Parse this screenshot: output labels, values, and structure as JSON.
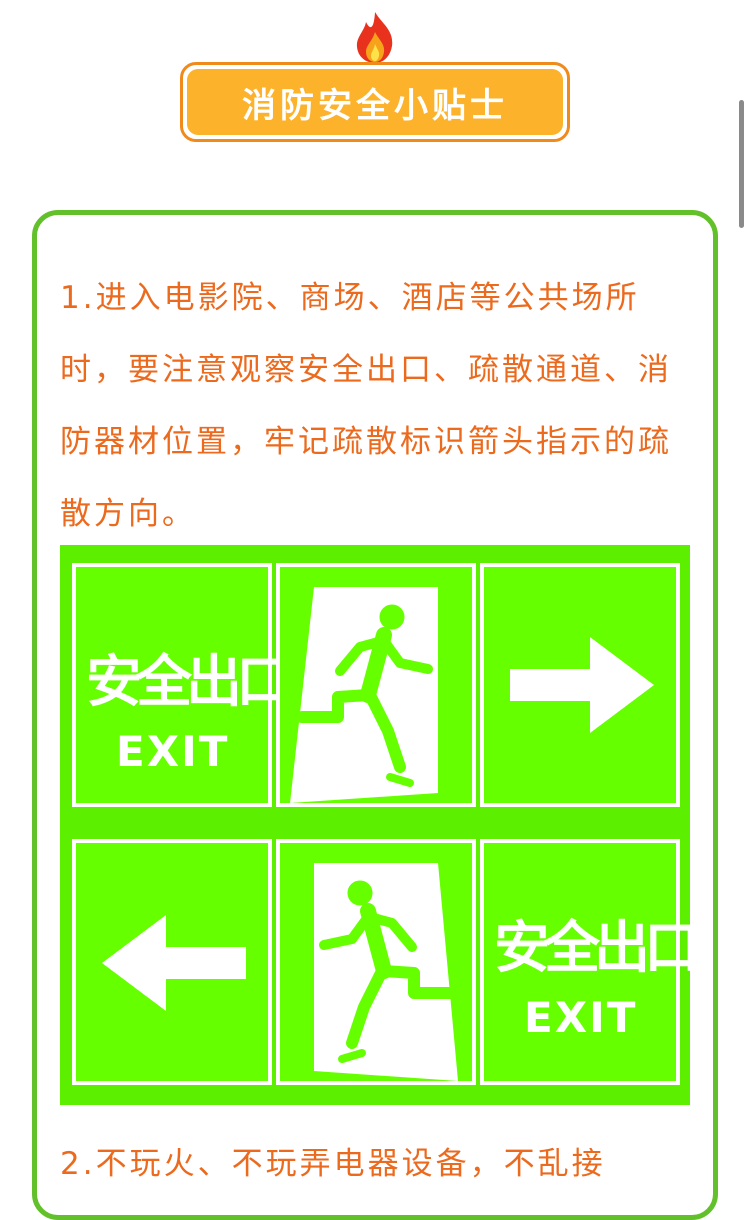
{
  "header": {
    "title": "消防安全小贴士",
    "icon": "flame-icon"
  },
  "tips": [
    {
      "text": "1.进入电影院、商场、酒店等公共场所时，要注意观察安全出口、疏散通道、消防器材位置，牢记疏散标识箭头指示的疏散方向。"
    },
    {
      "text": "2.不玩火、不玩弄电器设备，不乱接"
    }
  ],
  "sign": {
    "zh": "安全出口",
    "en": "EXIT",
    "icons": [
      "running-man-icon",
      "right-arrow-icon",
      "left-arrow-icon"
    ]
  },
  "colors": {
    "title_bg": "#fdb22b",
    "title_border": "#f08a1a",
    "text": "#ec6a1e",
    "card_border": "#62c12a",
    "sign_green": "#66ff00"
  }
}
